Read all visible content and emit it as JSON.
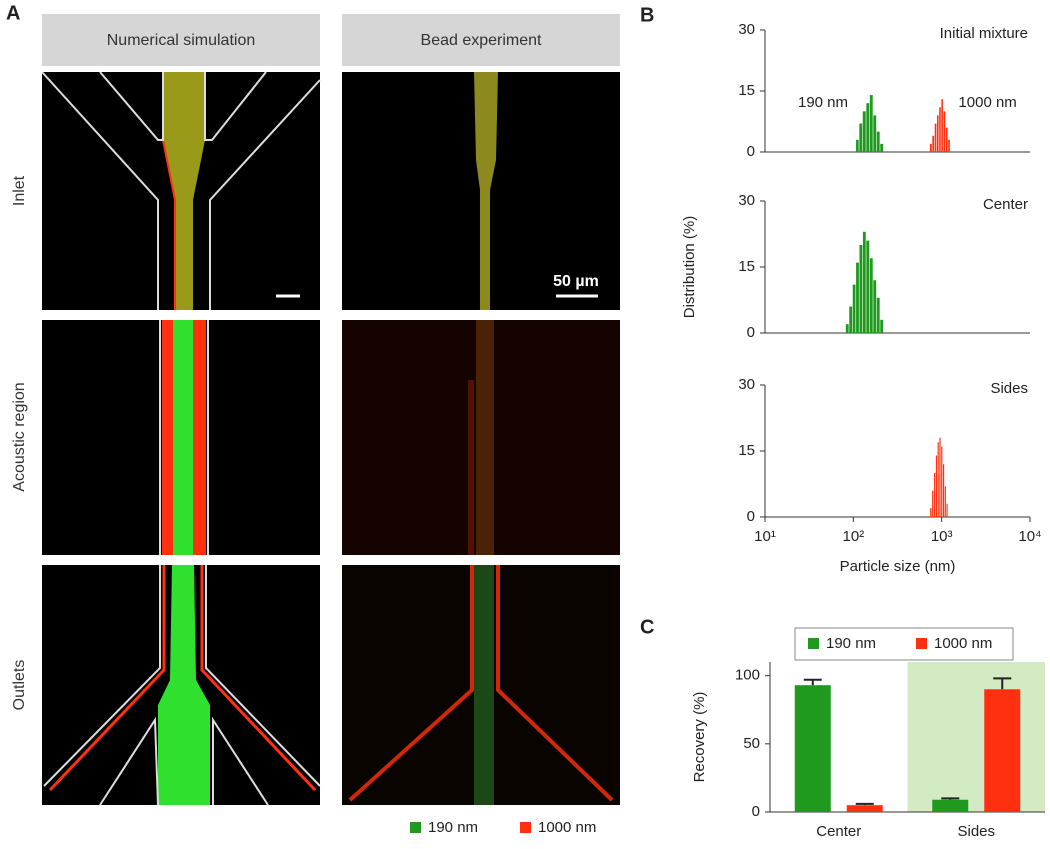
{
  "figure": {
    "panel_labels": [
      "A",
      "B",
      "C"
    ]
  },
  "images": {
    "columns": [
      "Numerical simulation",
      "Bead experiment"
    ],
    "rows": [
      "Inlet",
      "Acoustic region",
      "Outlets"
    ],
    "scale_bar": "50 µm",
    "legend": [
      {
        "name": "190 nm",
        "color": "#1f9a1f"
      },
      {
        "name": "1000 nm",
        "color": "#ff3010"
      }
    ]
  },
  "chart_data": [
    {
      "type": "histogram",
      "title": "Initial mixture",
      "log_x": true,
      "xlim": [
        10,
        10000
      ],
      "ylim": [
        0,
        30
      ],
      "yticks": [
        0,
        15,
        30
      ],
      "series": [
        {
          "name": "190 nm",
          "color": "#1f9a1f",
          "x": [
            112,
            122,
            134,
            147,
            161,
            176,
            193,
            211
          ],
          "values": [
            3,
            7,
            10,
            12,
            14,
            9,
            5,
            2
          ]
        },
        {
          "name": "1000 nm",
          "color": "#ff3010",
          "x": [
            760,
            810,
            860,
            910,
            965,
            1020,
            1080,
            1150,
            1220
          ],
          "values": [
            2,
            4,
            7,
            9,
            11,
            13,
            10,
            6,
            3
          ]
        }
      ]
    },
    {
      "type": "histogram",
      "title": "Center",
      "log_x": true,
      "ylabel": "Distribution (%)",
      "xlim": [
        10,
        10000
      ],
      "ylim": [
        0,
        30
      ],
      "yticks": [
        0,
        15,
        30
      ],
      "series": [
        {
          "color": "#1f9a1f",
          "x": [
            86,
            94,
            103,
            112,
            123,
            134,
            147,
            161,
            176,
            193,
            211
          ],
          "values": [
            2,
            6,
            11,
            16,
            20,
            23,
            21,
            17,
            12,
            8,
            3
          ]
        }
      ]
    },
    {
      "type": "histogram",
      "title": "Sides",
      "log_x": true,
      "xlabel": "Particle size (nm)",
      "xlim": [
        10,
        10000
      ],
      "ylim": [
        0,
        30
      ],
      "yticks": [
        0,
        15,
        30
      ],
      "xticks": [
        {
          "value": 10,
          "label": "10¹"
        },
        {
          "value": 100,
          "label": "10²"
        },
        {
          "value": 1000,
          "label": "10³"
        },
        {
          "value": 10000,
          "label": "10⁴"
        }
      ],
      "series": [
        {
          "color": "#ff3010",
          "x": [
            760,
            800,
            840,
            880,
            920,
            965,
            1010,
            1060,
            1110,
            1160
          ],
          "values": [
            2,
            6,
            10,
            14,
            17,
            18,
            16,
            12,
            7,
            3
          ]
        }
      ]
    },
    {
      "type": "bar",
      "ylabel": "Recovery (%)",
      "categories": [
        "Center",
        "Sides"
      ],
      "ylim": [
        0,
        110
      ],
      "yticks": [
        0,
        50,
        100
      ],
      "legend": "top",
      "highlight_category": "Sides",
      "highlight_color": "#d3eac3",
      "series": [
        {
          "name": "190 nm",
          "color": "#1f9a1f",
          "values": [
            93,
            9
          ],
          "errors": [
            4,
            1
          ]
        },
        {
          "name": "1000 nm",
          "color": "#ff3010",
          "values": [
            5,
            90
          ],
          "errors": [
            1,
            8
          ]
        }
      ]
    }
  ]
}
